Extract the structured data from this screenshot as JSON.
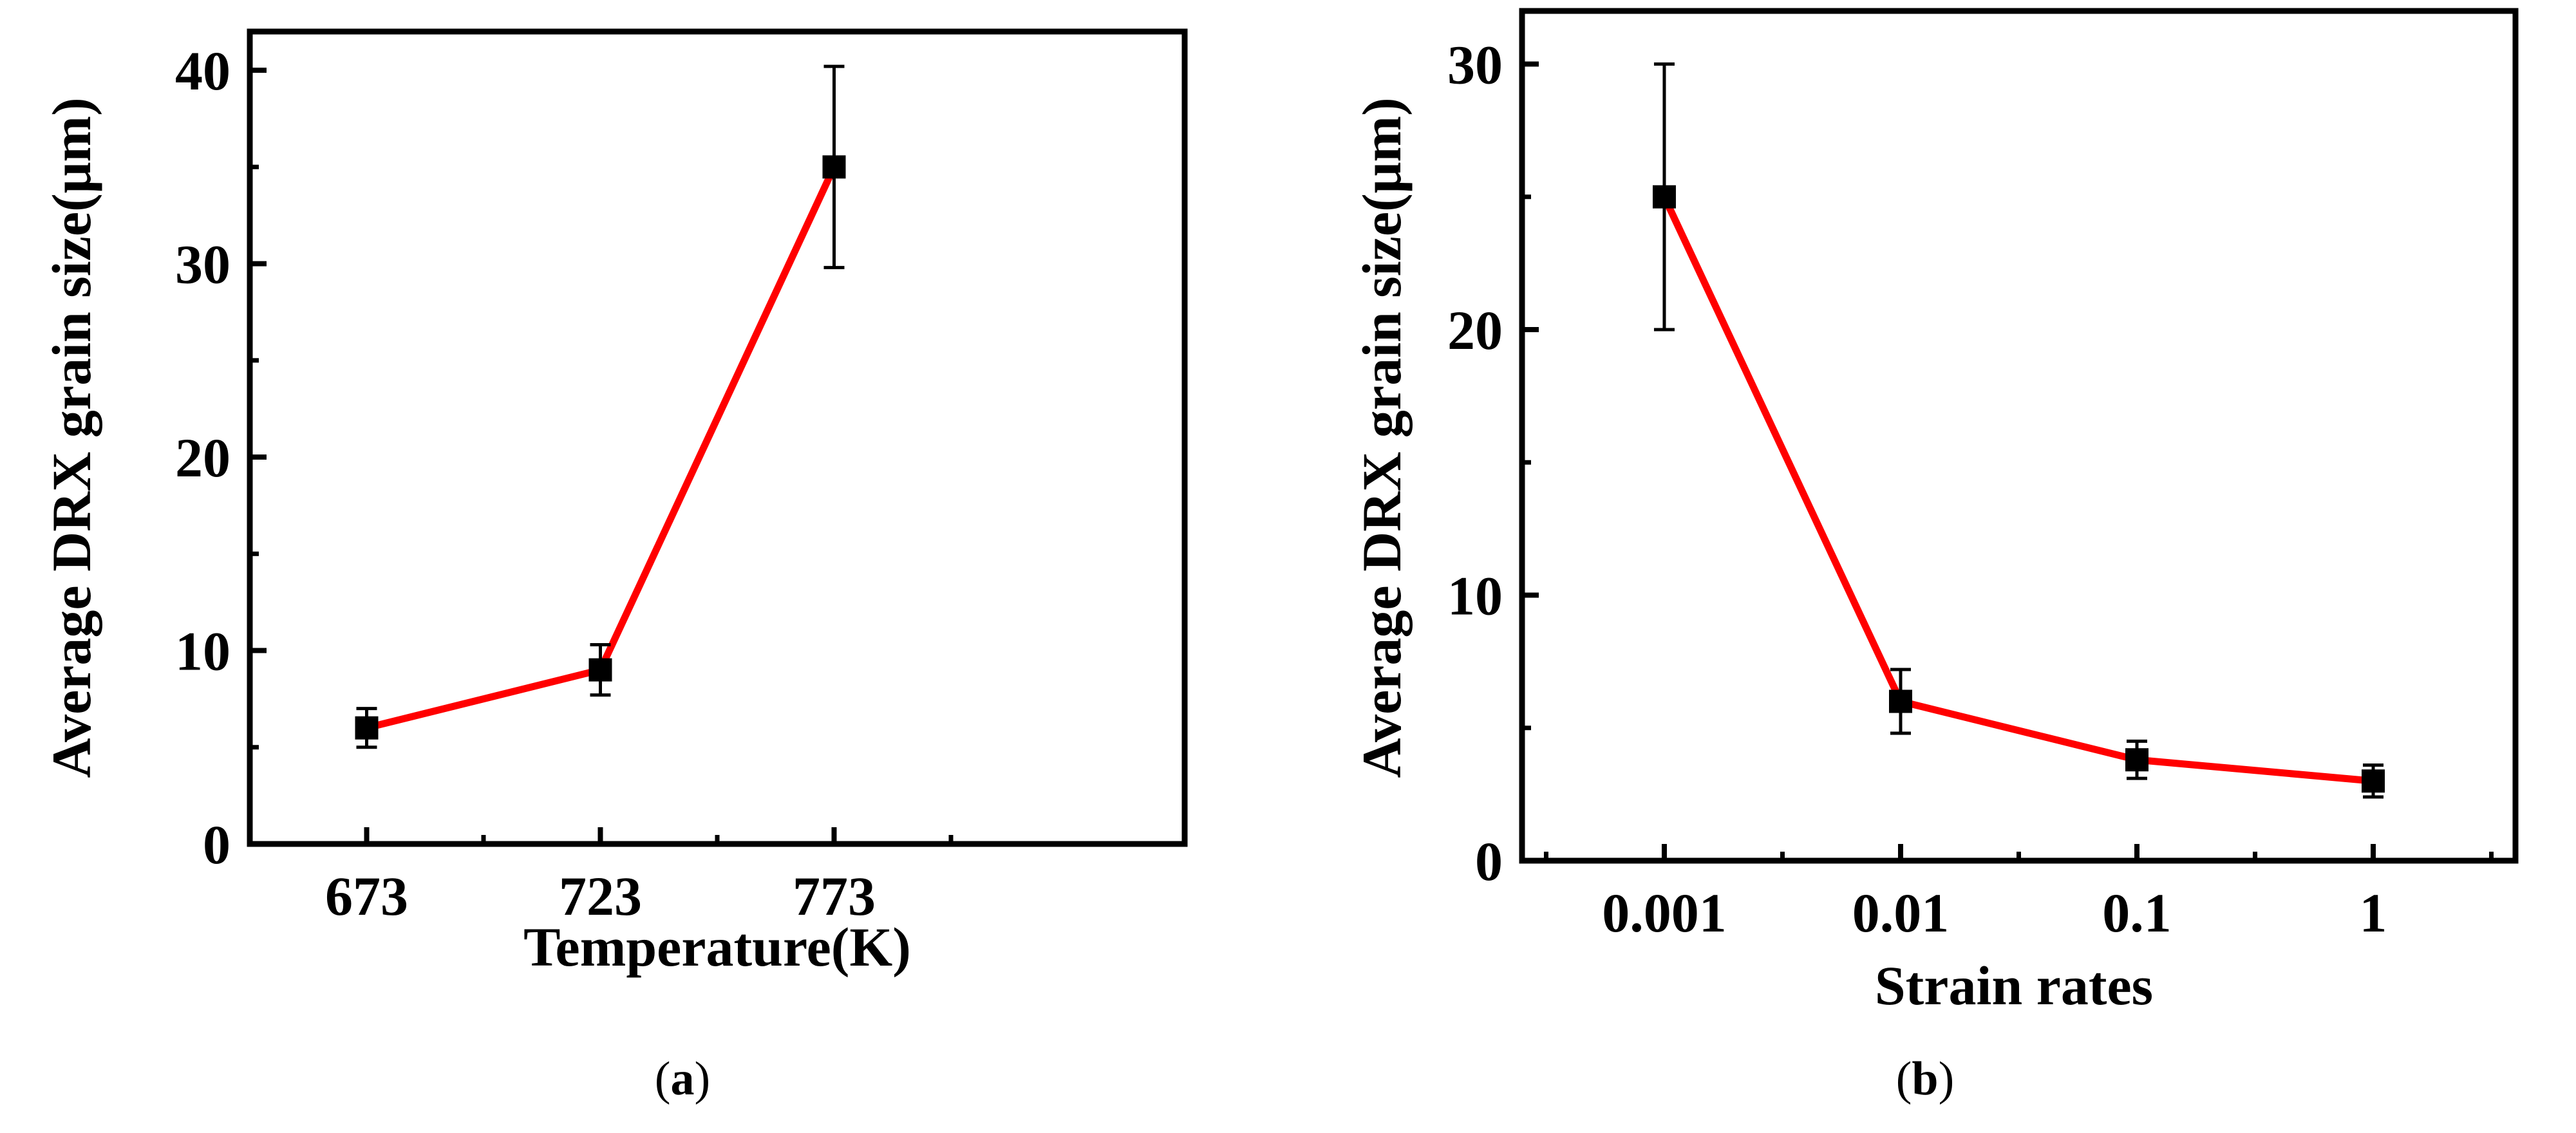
{
  "chart_data": [
    {
      "type": "line",
      "panel": "(a)",
      "panel_letter": "a",
      "xlabel": "Temperature(K)",
      "ylabel": "Average DRX grain size(μm)",
      "x_scale": "categorical",
      "categories": [
        "673",
        "723",
        "773"
      ],
      "ylim": [
        0,
        42
      ],
      "y_ticks": [
        0,
        10,
        20,
        30,
        40
      ],
      "grid": false,
      "legend": "none",
      "series": [
        {
          "color": "#ff0000",
          "marker_color": "#000000",
          "values": [
            6,
            9,
            35
          ],
          "errors": [
            1.0,
            1.3,
            5.2
          ]
        }
      ]
    },
    {
      "type": "line",
      "panel": "(b)",
      "panel_letter": "b",
      "xlabel": "Strain rates",
      "ylabel": "Average DRX grain size(μm)",
      "x_scale": "log",
      "x": [
        0.001,
        0.01,
        0.1,
        1
      ],
      "x_tick_labels": [
        "0.001",
        "0.01",
        "0.1",
        "1"
      ],
      "xlim": [
        0.00025,
        4
      ],
      "ylim": [
        0,
        32
      ],
      "y_ticks": [
        0,
        10,
        20,
        30
      ],
      "grid": false,
      "legend": "none",
      "series": [
        {
          "color": "#ff0000",
          "marker_color": "#000000",
          "values": [
            25,
            6,
            3.8,
            3
          ],
          "errors": [
            5,
            1.2,
            0.7,
            0.6
          ]
        }
      ]
    }
  ]
}
